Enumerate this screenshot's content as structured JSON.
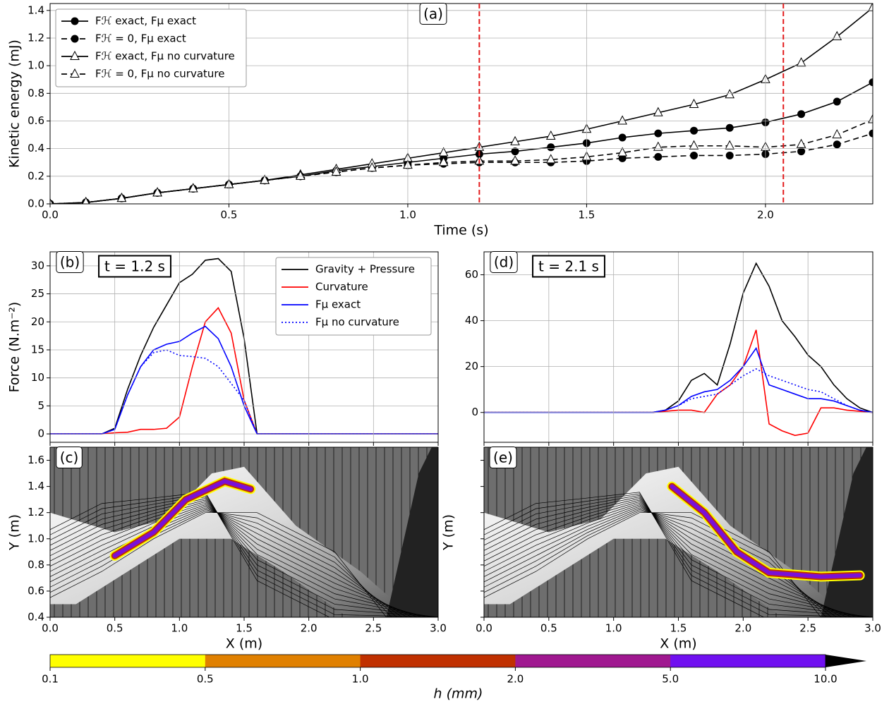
{
  "chart_data": [
    {
      "type": "line",
      "annotation": "(a)",
      "xlabel": "Time (s)",
      "ylabel": "Kinetic energy (mJ)",
      "x": [
        0,
        0.1,
        0.2,
        0.3,
        0.4,
        0.5,
        0.6,
        0.7,
        0.8,
        0.9,
        1.0,
        1.1,
        1.2,
        1.3,
        1.4,
        1.5,
        1.6,
        1.7,
        1.8,
        1.9,
        2.0,
        2.1,
        2.2,
        2.3
      ],
      "series": [
        {
          "name": "Fℋ exact, Fμ exact",
          "color": "#000000",
          "dash": false,
          "marker": "circle",
          "values": [
            0,
            0.01,
            0.04,
            0.08,
            0.11,
            0.14,
            0.17,
            0.2,
            0.24,
            0.27,
            0.3,
            0.33,
            0.36,
            0.38,
            0.41,
            0.44,
            0.48,
            0.51,
            0.53,
            0.55,
            0.59,
            0.65,
            0.74,
            0.88
          ]
        },
        {
          "name": "Fℋ = 0, Fμ exact",
          "color": "#000000",
          "dash": true,
          "marker": "circle",
          "values": [
            0,
            0.01,
            0.04,
            0.08,
            0.11,
            0.14,
            0.17,
            0.2,
            0.23,
            0.26,
            0.28,
            0.29,
            0.3,
            0.3,
            0.3,
            0.31,
            0.33,
            0.34,
            0.35,
            0.35,
            0.36,
            0.38,
            0.43,
            0.51
          ]
        },
        {
          "name": "Fℋ exact, Fμ no curvature",
          "color": "#000000",
          "dash": false,
          "marker": "triangle",
          "values": [
            0,
            0.01,
            0.04,
            0.08,
            0.11,
            0.14,
            0.17,
            0.21,
            0.25,
            0.29,
            0.33,
            0.37,
            0.41,
            0.45,
            0.49,
            0.54,
            0.6,
            0.66,
            0.72,
            0.79,
            0.9,
            1.02,
            1.21,
            1.42
          ]
        },
        {
          "name": "Fℋ = 0, Fμ no curvature",
          "color": "#000000",
          "dash": true,
          "marker": "triangle",
          "values": [
            0,
            0.01,
            0.04,
            0.08,
            0.11,
            0.14,
            0.17,
            0.2,
            0.23,
            0.26,
            0.28,
            0.3,
            0.31,
            0.31,
            0.32,
            0.34,
            0.37,
            0.41,
            0.42,
            0.42,
            0.41,
            0.43,
            0.5,
            0.61
          ]
        }
      ],
      "xlim": [
        0,
        2.3
      ],
      "ylim": [
        0,
        1.45
      ],
      "xticks": [
        {
          "value": 0,
          "label": "0.0"
        },
        0.5,
        {
          "value": 1,
          "label": "1.0"
        },
        1.5,
        {
          "value": 2,
          "label": "2.0"
        }
      ],
      "yticks": [
        {
          "value": 0,
          "label": "0.0"
        },
        0.2,
        0.4,
        0.6,
        0.8,
        {
          "value": 1,
          "label": "1.0"
        },
        1.2,
        1.4
      ],
      "vlines": [
        1.2,
        2.05
      ],
      "vline_color": "#e31a1c",
      "grid": true,
      "legend": "upper left"
    },
    {
      "type": "line",
      "annotation": "(b)",
      "time_label": "t = 1.2 s",
      "ylabel": "Force (N.m⁻²)",
      "x": [
        0,
        0.1,
        0.2,
        0.3,
        0.4,
        0.5,
        0.6,
        0.7,
        0.8,
        0.9,
        1.0,
        1.1,
        1.2,
        1.3,
        1.4,
        1.5,
        1.6,
        1.7,
        1.8,
        1.9,
        2.0,
        2.1,
        2.2,
        2.3,
        2.4,
        2.5,
        2.6,
        2.7,
        2.8,
        2.9,
        3.0
      ],
      "series": [
        {
          "name": "Gravity + Pressure",
          "color": "#000000",
          "dash": false,
          "values": [
            0,
            0,
            0,
            0,
            0,
            1,
            8,
            14,
            19,
            23,
            27,
            28.5,
            31,
            31.3,
            29,
            17,
            0,
            0,
            0,
            0,
            0,
            0,
            0,
            0,
            0,
            0,
            0,
            0,
            0,
            0,
            0
          ]
        },
        {
          "name": "Curvature",
          "color": "#ff0000",
          "dash": false,
          "values": [
            0,
            0,
            0,
            0,
            0,
            0.2,
            0.3,
            0.8,
            0.8,
            1,
            3,
            12,
            20,
            22.5,
            18,
            6,
            0,
            0,
            0,
            0,
            0,
            0,
            0,
            0,
            0,
            0,
            0,
            0,
            0,
            0,
            0
          ]
        },
        {
          "name": "Fμ exact",
          "color": "#0000ff",
          "dash": false,
          "values": [
            0,
            0,
            0,
            0,
            0,
            0.8,
            7,
            12,
            15,
            16,
            16.5,
            18,
            19.2,
            17,
            12,
            5,
            0,
            0,
            0,
            0,
            0,
            0,
            0,
            0,
            0,
            0,
            0,
            0,
            0,
            0,
            0
          ]
        },
        {
          "name": "Fμ no curvature",
          "color": "#0000ff",
          "dash": "dot",
          "values": [
            0,
            0,
            0,
            0,
            0,
            0.8,
            7,
            12,
            14.5,
            15,
            14,
            13.8,
            13.5,
            12,
            9,
            6,
            0,
            0,
            0,
            0,
            0,
            0,
            0,
            0,
            0,
            0,
            0,
            0,
            0,
            0,
            0
          ]
        }
      ],
      "xlim": [
        0,
        3
      ],
      "ylim": [
        -1.5,
        32.5
      ],
      "xticks": [
        0,
        0.5,
        1,
        1.5,
        2,
        2.5,
        3
      ],
      "show_xtick_labels": false,
      "yticks": [
        0,
        5,
        10,
        15,
        20,
        25,
        30
      ],
      "grid": true,
      "legend": "upper right"
    },
    {
      "type": "map",
      "annotation": "(c)",
      "xlabel": "X (m)",
      "ylabel": "Y (m)",
      "flow": "rising",
      "xlim": [
        0,
        3
      ],
      "ylim": [
        0.4,
        1.7
      ],
      "xticks": [
        {
          "value": 0,
          "label": "0.0"
        },
        0.5,
        {
          "value": 1,
          "label": "1.0"
        },
        1.5,
        {
          "value": 2,
          "label": "2.0"
        },
        2.5,
        {
          "value": 3,
          "label": "3.0"
        }
      ],
      "yticks": [
        0.4,
        0.6,
        0.8,
        {
          "value": 1,
          "label": "1.0"
        },
        1.2,
        1.4,
        1.6
      ]
    },
    {
      "type": "line",
      "annotation": "(d)",
      "time_label": "t = 2.1 s",
      "x": [
        0,
        0.1,
        0.2,
        0.3,
        0.4,
        0.5,
        0.6,
        0.7,
        0.8,
        0.9,
        1.0,
        1.1,
        1.2,
        1.3,
        1.4,
        1.5,
        1.6,
        1.7,
        1.8,
        1.9,
        2.0,
        2.1,
        2.2,
        2.3,
        2.4,
        2.5,
        2.6,
        2.7,
        2.8,
        2.9,
        3.0
      ],
      "series": [
        {
          "color": "#000000",
          "dash": false,
          "values": [
            0,
            0,
            0,
            0,
            0,
            0,
            0,
            0,
            0,
            0,
            0,
            0,
            0,
            0,
            1,
            5,
            14,
            17,
            12,
            30,
            52,
            65,
            55,
            40,
            33,
            25,
            20,
            12,
            6,
            2,
            0
          ]
        },
        {
          "color": "#ff0000",
          "dash": false,
          "values": [
            0,
            0,
            0,
            0,
            0,
            0,
            0,
            0,
            0,
            0,
            0,
            0,
            0,
            0,
            0.5,
            1,
            1,
            0,
            8,
            12,
            20,
            36,
            -5,
            -8,
            -10,
            -9,
            2,
            2,
            1,
            0.5,
            0
          ]
        },
        {
          "color": "#0000ff",
          "dash": false,
          "values": [
            0,
            0,
            0,
            0,
            0,
            0,
            0,
            0,
            0,
            0,
            0,
            0,
            0,
            0,
            1,
            3,
            7,
            9,
            10,
            14,
            20,
            28,
            12,
            10,
            8,
            6,
            6,
            5,
            3,
            1,
            0
          ]
        },
        {
          "color": "#0000ff",
          "dash": "dot",
          "values": [
            0,
            0,
            0,
            0,
            0,
            0,
            0,
            0,
            0,
            0,
            0,
            0,
            0,
            0,
            1,
            3,
            6,
            7,
            8,
            12,
            16,
            19,
            16,
            14,
            12,
            10,
            9,
            6,
            3,
            1,
            0
          ]
        }
      ],
      "xlim": [
        0,
        3
      ],
      "ylim": [
        -13,
        70
      ],
      "xticks": [
        0,
        0.5,
        1,
        1.5,
        2,
        2.5,
        3
      ],
      "show_xtick_labels": false,
      "yticks": [
        0,
        20,
        40,
        60
      ],
      "grid": true
    },
    {
      "type": "map",
      "annotation": "(e)",
      "xlabel": "X (m)",
      "ylabel": "Y (m)",
      "flow": "descending",
      "xlim": [
        0,
        3
      ],
      "ylim": [
        0.4,
        1.7
      ],
      "xticks": [
        {
          "value": 0,
          "label": "0.0"
        },
        0.5,
        {
          "value": 1,
          "label": "1.0"
        },
        1.5,
        {
          "value": 2,
          "label": "2.0"
        },
        2.5,
        {
          "value": 3,
          "label": "3.0"
        }
      ],
      "yticks": [
        0.4,
        0.6,
        0.8,
        1,
        1.2,
        1.4,
        1.6
      ],
      "show_ytick_labels": false
    },
    {
      "type": "colorbar",
      "label": "h (mm)",
      "bounds": [
        0.1,
        0.5,
        {
          "value": 1,
          "label": "1.0"
        },
        {
          "value": 2,
          "label": "2.0"
        },
        {
          "value": 5,
          "label": "5.0"
        },
        {
          "value": 10,
          "label": "10.0"
        }
      ],
      "colors": [
        "#ffff00",
        "#e08000",
        "#c03000",
        "#a01890",
        "#7010f0"
      ],
      "extend_color": "#000000"
    }
  ]
}
